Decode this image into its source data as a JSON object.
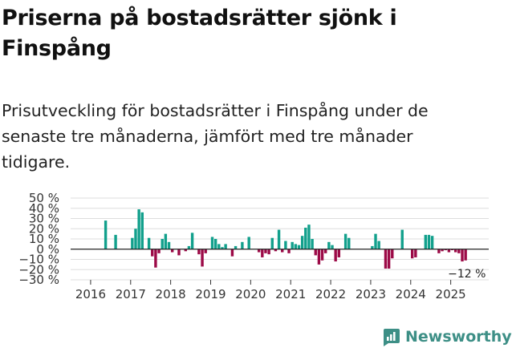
{
  "title": "Priserna på bostadsrätter sjönk i Finspång",
  "subtitle": "Prisutveckling för bostadsrätter i Finspång under de senaste tre månaderna, jämfört med tre månader tidigare.",
  "brand": {
    "name": "Newsworthy",
    "color": "#3d8f86"
  },
  "colors": {
    "positive": "#12a08c",
    "negative": "#9c0a47",
    "grid": "#dddddd",
    "zero": "#222222"
  },
  "chart_data": {
    "type": "bar",
    "title": "Priserna på bostadsrätter sjönk i Finspång",
    "xlabel": "",
    "ylabel": "",
    "ylim": [
      -30,
      50
    ],
    "yticks": [
      50,
      40,
      30,
      20,
      10,
      0,
      -10,
      -20,
      -30
    ],
    "ytick_labels": [
      "50 %",
      "40 %",
      "30 %",
      "20 %",
      "10 %",
      "0 %",
      "−10 %",
      "−20 %",
      "−30 %"
    ],
    "xlim": [
      2015.5,
      2025.95
    ],
    "xticks": [
      2016,
      2017,
      2018,
      2019,
      2020,
      2021,
      2022,
      2023,
      2024,
      2025
    ],
    "xtick_labels": [
      "2016",
      "2017",
      "2018",
      "2019",
      "2020",
      "2021",
      "2022",
      "2023",
      "2024",
      "2025"
    ],
    "start": 2016.0,
    "step": 0.0833,
    "values": [
      0,
      0,
      0,
      0,
      28,
      0,
      0,
      14,
      0,
      0,
      0,
      0,
      11,
      20,
      39,
      36,
      0,
      11,
      -7,
      -18,
      -4,
      10,
      15,
      7,
      -3,
      0,
      -6,
      0,
      -2,
      3,
      16,
      0,
      -5,
      -17,
      -4,
      0,
      12,
      10,
      5,
      2,
      5,
      0,
      -7,
      3,
      0,
      7,
      0,
      12,
      0,
      0,
      -3,
      -8,
      -4,
      -5,
      11,
      -2,
      19,
      -3,
      8,
      -4,
      7,
      5,
      4,
      13,
      21,
      24,
      10,
      -6,
      -15,
      -11,
      -4,
      7,
      4,
      -12,
      -8,
      0,
      15,
      11,
      0,
      0,
      0,
      0,
      0,
      0,
      3,
      15,
      8,
      0,
      -19,
      -19,
      -9,
      0,
      0,
      19,
      0,
      0,
      -9,
      -8,
      0,
      0,
      14,
      14,
      13,
      0,
      -4,
      -2,
      -1,
      -3,
      -1,
      -3,
      -4,
      -12,
      -11,
      0,
      0,
      0,
      0,
      0,
      0,
      0
    ],
    "last_label": "−12 %"
  }
}
